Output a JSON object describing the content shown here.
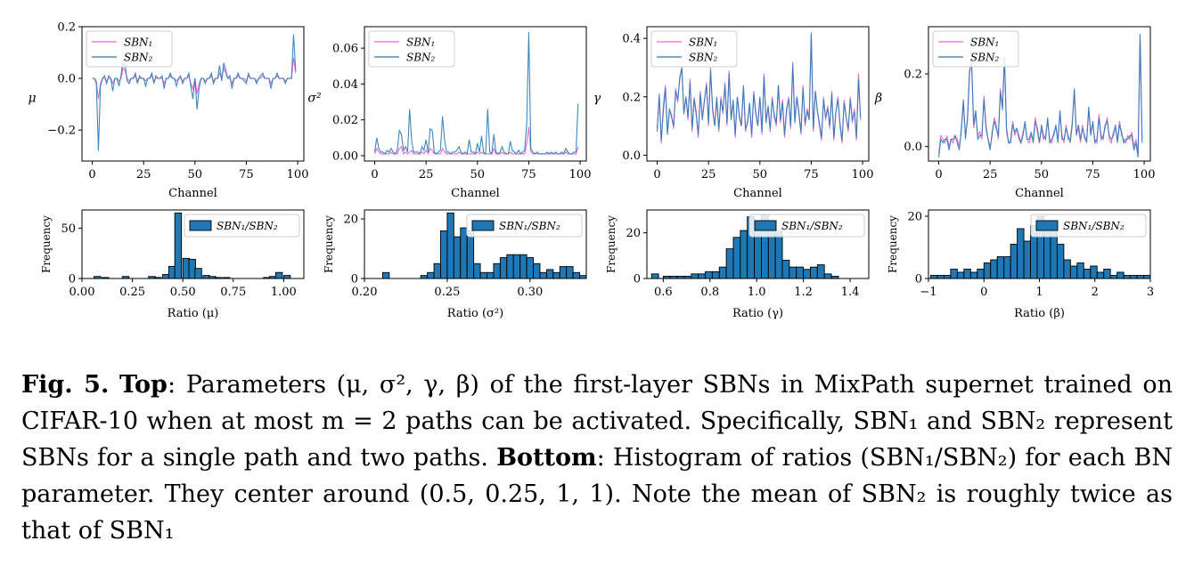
{
  "colors": {
    "sbn1": "#e86fcf",
    "sbn2": "#2b7bb6",
    "bar_fill": "#1f77b4",
    "bar_edge": "#000000"
  },
  "chart_data": [
    {
      "type": "line",
      "xlabel": "Channel",
      "ylabel": "μ",
      "xlim": [
        -5,
        103
      ],
      "ylim": [
        -0.32,
        0.2
      ],
      "xticks": [
        0,
        25,
        50,
        75,
        100
      ],
      "xtick_labels": [
        "0",
        "25",
        "50",
        "75",
        "100"
      ],
      "yticks": [
        0.2,
        0.0,
        -0.2
      ],
      "ytick_labels": [
        "0.2",
        "0.0",
        "−0.2"
      ],
      "legend_position": "upper-left",
      "legend_entries": [
        "SBN₁",
        "SBN₂"
      ],
      "sbn1": [
        0.0,
        0.0,
        -0.01,
        -0.08,
        -0.02,
        0.0,
        0.0,
        -0.01,
        0.0,
        0.0,
        -0.02,
        0.0,
        0.0,
        -0.01,
        0.0,
        0.04,
        0.03,
        0.0,
        -0.01,
        0.0,
        0.0,
        0.01,
        -0.01,
        0.0,
        0.0,
        0.0,
        -0.01,
        0.0,
        0.0,
        0.01,
        -0.01,
        0.0,
        0.0,
        0.0,
        0.0,
        -0.02,
        0.0,
        0.0,
        0.01,
        0.0,
        0.0,
        -0.01,
        0.0,
        0.0,
        -0.01,
        0.0,
        0.0,
        0.01,
        -0.02,
        -0.04,
        0.0,
        -0.06,
        -0.02,
        0.0,
        0.0,
        -0.01,
        0.0,
        0.0,
        0.01,
        -0.01,
        0.0,
        0.0,
        0.02,
        0.0,
        0.04,
        0.02,
        0.0,
        0.0,
        -0.02,
        0.0,
        0.0,
        0.01,
        0.0,
        0.0,
        0.0,
        -0.01,
        0.01,
        0.0,
        0.0,
        0.0,
        -0.01,
        0.0,
        0.0,
        0.01,
        0.0,
        0.0,
        0.0,
        -0.02,
        0.0,
        0.0,
        0.01,
        0.0,
        0.0,
        0.0,
        -0.01,
        0.0,
        0.0,
        0.0,
        0.08,
        0.02
      ],
      "sbn2": [
        0.0,
        0.0,
        -0.02,
        -0.28,
        -0.03,
        0.0,
        0.01,
        -0.02,
        0.01,
        0.0,
        -0.05,
        0.0,
        0.0,
        -0.03,
        0.01,
        0.08,
        0.05,
        -0.01,
        -0.02,
        0.0,
        0.0,
        0.02,
        -0.02,
        0.01,
        0.0,
        0.0,
        -0.03,
        0.0,
        0.0,
        0.02,
        -0.02,
        0.01,
        0.0,
        0.0,
        0.01,
        -0.04,
        0.0,
        0.0,
        0.02,
        0.0,
        0.0,
        -0.03,
        0.0,
        0.01,
        -0.02,
        0.0,
        0.0,
        0.02,
        -0.03,
        -0.08,
        0.0,
        -0.12,
        -0.04,
        0.0,
        0.0,
        -0.02,
        0.0,
        0.0,
        0.02,
        -0.02,
        0.0,
        0.0,
        0.05,
        -0.01,
        0.06,
        0.03,
        0.0,
        0.01,
        -0.04,
        0.0,
        0.0,
        0.02,
        0.0,
        0.0,
        -0.01,
        -0.02,
        0.02,
        0.0,
        0.0,
        0.0,
        -0.02,
        0.0,
        0.01,
        0.02,
        0.0,
        0.0,
        0.0,
        -0.04,
        0.0,
        0.0,
        0.02,
        0.0,
        0.0,
        0.0,
        -0.02,
        0.0,
        0.0,
        0.0,
        0.17,
        0.03
      ]
    },
    {
      "type": "line",
      "xlabel": "Channel",
      "ylabel": "σ²",
      "xlim": [
        -5,
        103
      ],
      "ylim": [
        -0.003,
        0.072
      ],
      "xticks": [
        0,
        25,
        50,
        75,
        100
      ],
      "xtick_labels": [
        "0",
        "25",
        "50",
        "75",
        "100"
      ],
      "yticks": [
        0.0,
        0.02,
        0.04,
        0.06
      ],
      "ytick_labels": [
        "0.00",
        "0.02",
        "0.04",
        "0.06"
      ],
      "legend_position": "upper-left",
      "legend_entries": [
        "SBN₁",
        "SBN₂"
      ],
      "sbn1": [
        0.001,
        0.004,
        0.002,
        0.001,
        0.001,
        0.001,
        0.001,
        0.001,
        0.002,
        0.001,
        0.001,
        0.001,
        0.004,
        0.005,
        0.001,
        0.002,
        0.001,
        0.002,
        0.003,
        0.001,
        0.001,
        0.001,
        0.001,
        0.002,
        0.001,
        0.003,
        0.001,
        0.004,
        0.003,
        0.001,
        0.001,
        0.001,
        0.001,
        0.004,
        0.002,
        0.001,
        0.001,
        0.001,
        0.001,
        0.001,
        0.001,
        0.002,
        0.001,
        0.001,
        0.001,
        0.001,
        0.001,
        0.001,
        0.001,
        0.001,
        0.002,
        0.001,
        0.002,
        0.001,
        0.001,
        0.001,
        0.001,
        0.001,
        0.004,
        0.001,
        0.001,
        0.001,
        0.002,
        0.001,
        0.001,
        0.001,
        0.002,
        0.001,
        0.001,
        0.001,
        0.001,
        0.001,
        0.001,
        0.001,
        0.007,
        0.016,
        0.002,
        0.001,
        0.001,
        0.001,
        0.001,
        0.001,
        0.001,
        0.001,
        0.001,
        0.001,
        0.001,
        0.001,
        0.001,
        0.001,
        0.001,
        0.001,
        0.001,
        0.002,
        0.001,
        0.001,
        0.001,
        0.001,
        0.001,
        0.005
      ],
      "sbn2": [
        0.002,
        0.01,
        0.004,
        0.002,
        0.002,
        0.001,
        0.003,
        0.002,
        0.004,
        0.002,
        0.001,
        0.003,
        0.014,
        0.012,
        0.003,
        0.005,
        0.002,
        0.026,
        0.008,
        0.002,
        0.002,
        0.002,
        0.001,
        0.005,
        0.003,
        0.009,
        0.002,
        0.015,
        0.014,
        0.002,
        0.001,
        0.002,
        0.003,
        0.022,
        0.009,
        0.002,
        0.002,
        0.001,
        0.002,
        0.002,
        0.003,
        0.005,
        0.002,
        0.001,
        0.002,
        0.001,
        0.009,
        0.002,
        0.002,
        0.001,
        0.007,
        0.002,
        0.011,
        0.002,
        0.001,
        0.026,
        0.002,
        0.001,
        0.012,
        0.002,
        0.001,
        0.002,
        0.005,
        0.002,
        0.001,
        0.001,
        0.008,
        0.003,
        0.002,
        0.001,
        0.003,
        0.001,
        0.002,
        0.003,
        0.018,
        0.069,
        0.004,
        0.002,
        0.001,
        0.002,
        0.001,
        0.001,
        0.001,
        0.001,
        0.002,
        0.001,
        0.002,
        0.001,
        0.002,
        0.001,
        0.001,
        0.002,
        0.001,
        0.004,
        0.002,
        0.001,
        0.001,
        0.002,
        0.002,
        0.029
      ]
    },
    {
      "type": "line",
      "xlabel": "Channel",
      "ylabel": "γ",
      "xlim": [
        -5,
        103
      ],
      "ylim": [
        -0.02,
        0.44
      ],
      "xticks": [
        0,
        25,
        50,
        75,
        100
      ],
      "xtick_labels": [
        "0",
        "25",
        "50",
        "75",
        "100"
      ],
      "yticks": [
        0.0,
        0.2,
        0.4
      ],
      "ytick_labels": [
        "0.0",
        "0.2",
        "0.4"
      ],
      "legend_position": "upper-left",
      "legend_entries": [
        "SBN₁",
        "SBN₂"
      ],
      "sbn1": [
        0.09,
        0.2,
        0.04,
        0.17,
        0.24,
        0.08,
        0.15,
        0.14,
        0.09,
        0.23,
        0.18,
        0.27,
        0.3,
        0.15,
        0.2,
        0.12,
        0.26,
        0.08,
        0.2,
        0.15,
        0.06,
        0.22,
        0.13,
        0.18,
        0.25,
        0.1,
        0.3,
        0.15,
        0.1,
        0.19,
        0.08,
        0.2,
        0.14,
        0.25,
        0.1,
        0.29,
        0.13,
        0.18,
        0.06,
        0.2,
        0.14,
        0.1,
        0.23,
        0.08,
        0.12,
        0.17,
        0.06,
        0.22,
        0.15,
        0.1,
        0.2,
        0.07,
        0.28,
        0.12,
        0.16,
        0.08,
        0.2,
        0.13,
        0.1,
        0.24,
        0.11,
        0.19,
        0.06,
        0.15,
        0.2,
        0.09,
        0.32,
        0.12,
        0.2,
        0.15,
        0.07,
        0.24,
        0.1,
        0.16,
        0.13,
        0.41,
        0.08,
        0.22,
        0.15,
        0.1,
        0.05,
        0.2,
        0.12,
        0.17,
        0.09,
        0.22,
        0.05,
        0.15,
        0.2,
        0.1,
        0.04,
        0.19,
        0.13,
        0.08,
        0.2,
        0.11,
        0.16,
        0.05,
        0.28,
        0.12
      ],
      "sbn2": [
        0.08,
        0.21,
        0.05,
        0.15,
        0.23,
        0.07,
        0.16,
        0.13,
        0.1,
        0.22,
        0.19,
        0.26,
        0.3,
        0.14,
        0.2,
        0.13,
        0.25,
        0.09,
        0.19,
        0.14,
        0.07,
        0.21,
        0.12,
        0.19,
        0.24,
        0.11,
        0.29,
        0.16,
        0.1,
        0.2,
        0.09,
        0.19,
        0.15,
        0.24,
        0.11,
        0.28,
        0.12,
        0.19,
        0.07,
        0.2,
        0.13,
        0.1,
        0.24,
        0.09,
        0.11,
        0.18,
        0.07,
        0.21,
        0.14,
        0.1,
        0.2,
        0.08,
        0.27,
        0.11,
        0.17,
        0.09,
        0.19,
        0.14,
        0.11,
        0.24,
        0.12,
        0.18,
        0.07,
        0.16,
        0.19,
        0.1,
        0.31,
        0.11,
        0.2,
        0.14,
        0.08,
        0.23,
        0.11,
        0.15,
        0.12,
        0.42,
        0.09,
        0.22,
        0.15,
        0.11,
        0.06,
        0.19,
        0.13,
        0.16,
        0.1,
        0.21,
        0.06,
        0.15,
        0.19,
        0.11,
        0.05,
        0.18,
        0.13,
        0.09,
        0.19,
        0.12,
        0.15,
        0.06,
        0.26,
        0.13
      ]
    },
    {
      "type": "line",
      "xlabel": "Channel",
      "ylabel": "β",
      "xlim": [
        -5,
        103
      ],
      "ylim": [
        -0.04,
        0.33
      ],
      "xticks": [
        0,
        25,
        50,
        75,
        100
      ],
      "xtick_labels": [
        "0",
        "25",
        "50",
        "75",
        "100"
      ],
      "yticks": [
        0.0,
        0.2
      ],
      "ytick_labels": [
        "0.0",
        "0.2"
      ],
      "legend_position": "upper-left",
      "legend_entries": [
        "SBN₁",
        "SBN₂"
      ],
      "sbn1": [
        -0.02,
        0.03,
        0.02,
        0.01,
        0.03,
        0.0,
        0.02,
        0.01,
        0.03,
        0.02,
        0.0,
        0.04,
        0.12,
        0.03,
        0.07,
        0.2,
        0.24,
        0.05,
        0.09,
        0.03,
        0.04,
        0.02,
        0.14,
        0.06,
        0.02,
        0.0,
        0.03,
        0.08,
        0.06,
        0.02,
        0.16,
        0.11,
        0.24,
        0.04,
        0.01,
        0.02,
        0.07,
        0.03,
        0.05,
        0.02,
        0.01,
        0.04,
        0.06,
        0.02,
        0.01,
        0.03,
        0.02,
        0.08,
        0.04,
        0.01,
        0.05,
        0.02,
        0.03,
        0.07,
        0.02,
        0.01,
        0.04,
        0.05,
        0.02,
        0.09,
        0.03,
        0.01,
        0.06,
        0.02,
        0.02,
        0.07,
        0.15,
        0.04,
        0.05,
        0.01,
        0.06,
        0.02,
        0.02,
        0.1,
        0.04,
        0.06,
        0.02,
        0.01,
        0.09,
        0.02,
        0.03,
        0.05,
        0.08,
        0.02,
        0.01,
        0.04,
        0.05,
        0.02,
        0.07,
        0.03,
        0.02,
        0.01,
        0.03,
        0.02,
        0.04,
        0.0,
        0.02,
        -0.02,
        0.3,
        0.02
      ],
      "sbn2": [
        -0.03,
        0.02,
        0.01,
        0.02,
        0.02,
        -0.01,
        0.02,
        0.02,
        0.03,
        0.01,
        -0.01,
        0.05,
        0.13,
        0.02,
        0.08,
        0.21,
        0.23,
        0.06,
        0.1,
        0.02,
        0.03,
        0.03,
        0.13,
        0.05,
        0.02,
        -0.01,
        0.04,
        0.07,
        0.05,
        0.03,
        0.15,
        0.1,
        0.25,
        0.05,
        0.01,
        0.01,
        0.06,
        0.04,
        0.05,
        0.03,
        0.01,
        0.03,
        0.07,
        0.02,
        0.02,
        0.04,
        0.01,
        0.07,
        0.05,
        0.01,
        0.06,
        0.03,
        0.02,
        0.08,
        0.01,
        0.02,
        0.03,
        0.06,
        0.01,
        0.1,
        0.02,
        0.02,
        0.05,
        0.03,
        0.01,
        0.06,
        0.16,
        0.03,
        0.06,
        0.02,
        0.05,
        0.03,
        0.01,
        0.11,
        0.03,
        0.07,
        0.01,
        0.02,
        0.08,
        0.03,
        0.02,
        0.06,
        0.07,
        0.03,
        0.02,
        0.03,
        0.06,
        0.01,
        0.06,
        0.04,
        0.01,
        0.02,
        0.02,
        0.03,
        0.03,
        -0.01,
        0.01,
        -0.03,
        0.31,
        0.01
      ]
    },
    {
      "type": "bar",
      "xlabel": "Ratio (μ)",
      "ylabel": "Frequency",
      "xlim": [
        0.0,
        1.1
      ],
      "ylim": [
        0,
        68
      ],
      "xticks": [
        0.0,
        0.25,
        0.5,
        0.75,
        1.0
      ],
      "xtick_labels": [
        "0.00",
        "0.25",
        "0.50",
        "0.75",
        "1.00"
      ],
      "yticks": [
        0,
        50
      ],
      "ytick_labels": [
        "0",
        "50"
      ],
      "legend_position": "upper-right",
      "legend_entries": [
        "SBN₁/SBN₂"
      ],
      "bin_width": 0.0333,
      "bin_starts": [
        0.06,
        0.1,
        0.2,
        0.33,
        0.36,
        0.4,
        0.43,
        0.46,
        0.5,
        0.53,
        0.56,
        0.6,
        0.63,
        0.66,
        0.7,
        0.9,
        0.93,
        0.96,
        1.0
      ],
      "counts": [
        2,
        1,
        2,
        2,
        1,
        4,
        12,
        65,
        20,
        19,
        10,
        3,
        2,
        1,
        1,
        1,
        2,
        6,
        3
      ]
    },
    {
      "type": "bar",
      "xlabel": "Ratio (σ²)",
      "ylabel": "Frequency",
      "xlim": [
        0.2,
        0.334
      ],
      "ylim": [
        0,
        23
      ],
      "xticks": [
        0.2,
        0.25,
        0.3
      ],
      "xtick_labels": [
        "0.20",
        "0.25",
        "0.30"
      ],
      "yticks": [
        0,
        20
      ],
      "ytick_labels": [
        "0",
        "20"
      ],
      "legend_position": "upper-right",
      "legend_entries": [
        "SBN₁/SBN₂"
      ],
      "bin_width": 0.004,
      "bin_starts": [
        0.211,
        0.234,
        0.238,
        0.242,
        0.246,
        0.25,
        0.254,
        0.258,
        0.262,
        0.266,
        0.27,
        0.274,
        0.278,
        0.282,
        0.286,
        0.29,
        0.294,
        0.298,
        0.302,
        0.306,
        0.31,
        0.314,
        0.318,
        0.322,
        0.326,
        0.33
      ],
      "counts": [
        2,
        1,
        2,
        5,
        16,
        22,
        14,
        17,
        16,
        5,
        2,
        2,
        5,
        7,
        8,
        8,
        8,
        7,
        5,
        2,
        3,
        2,
        4,
        4,
        2,
        1
      ]
    },
    {
      "type": "bar",
      "xlabel": "Ratio (γ)",
      "ylabel": "Frequency",
      "xlim": [
        0.53,
        1.48
      ],
      "ylim": [
        0,
        30
      ],
      "xticks": [
        0.6,
        0.8,
        1.0,
        1.2,
        1.4
      ],
      "xtick_labels": [
        "0.6",
        "0.8",
        "1.0",
        "1.2",
        "1.4"
      ],
      "yticks": [
        0,
        20
      ],
      "ytick_labels": [
        "0",
        "20"
      ],
      "legend_position": "upper-right",
      "legend_entries": [
        "SBN₁/SBN₂"
      ],
      "bin_width": 0.03,
      "bin_starts": [
        0.55,
        0.6,
        0.63,
        0.66,
        0.69,
        0.72,
        0.75,
        0.78,
        0.81,
        0.84,
        0.87,
        0.9,
        0.93,
        0.96,
        0.99,
        1.02,
        1.05,
        1.08,
        1.11,
        1.14,
        1.17,
        1.2,
        1.23,
        1.26,
        1.29,
        1.32
      ],
      "counts": [
        2,
        1,
        1,
        1,
        1,
        2,
        2,
        3,
        3,
        5,
        13,
        18,
        21,
        27,
        25,
        28,
        22,
        21,
        8,
        5,
        5,
        4,
        5,
        6,
        2,
        1
      ]
    },
    {
      "type": "bar",
      "xlabel": "Ratio (β)",
      "ylabel": "Frequency",
      "xlim": [
        -1.0,
        3.0
      ],
      "ylim": [
        0,
        22
      ],
      "xticks": [
        -1,
        0,
        1,
        2,
        3
      ],
      "xtick_labels": [
        "−1",
        "0",
        "1",
        "2",
        "3"
      ],
      "yticks": [
        0,
        20
      ],
      "ytick_labels": [
        "0",
        "20"
      ],
      "legend_position": "upper-right",
      "legend_entries": [
        "SBN₁/SBN₂"
      ],
      "bin_width": 0.12,
      "bin_starts": [
        -0.96,
        -0.84,
        -0.72,
        -0.6,
        -0.48,
        -0.36,
        -0.24,
        -0.12,
        0.0,
        0.12,
        0.24,
        0.36,
        0.48,
        0.6,
        0.72,
        0.84,
        0.96,
        1.08,
        1.2,
        1.32,
        1.44,
        1.56,
        1.68,
        1.8,
        1.92,
        2.04,
        2.16,
        2.28,
        2.4,
        2.52,
        2.64,
        2.76,
        2.88
      ],
      "counts": [
        1,
        1,
        1,
        3,
        2,
        3,
        2,
        3,
        5,
        6,
        7,
        7,
        11,
        16,
        12,
        17,
        20,
        15,
        18,
        11,
        6,
        4,
        5,
        3,
        4,
        2,
        3,
        1,
        2,
        1,
        1,
        1,
        1
      ]
    }
  ],
  "caption": {
    "figure_label": "Fig. 5.",
    "top_label": "Top",
    "top_text": ": Parameters (μ, σ², γ, β) of the first-layer SBNs in MixPath supernet trained on CIFAR-10 when at most m = 2 paths can be activated. Specifically, SBN₁ and SBN₂ represent SBNs for a single path and two paths.",
    "bottom_label": "Bottom",
    "bottom_text": ": Histogram of ratios (SBN₁/SBN₂) for each BN parameter. They center around (0.5, 0.25, 1, 1). Note the mean of SBN₂ is roughly twice as that of SBN₁"
  }
}
